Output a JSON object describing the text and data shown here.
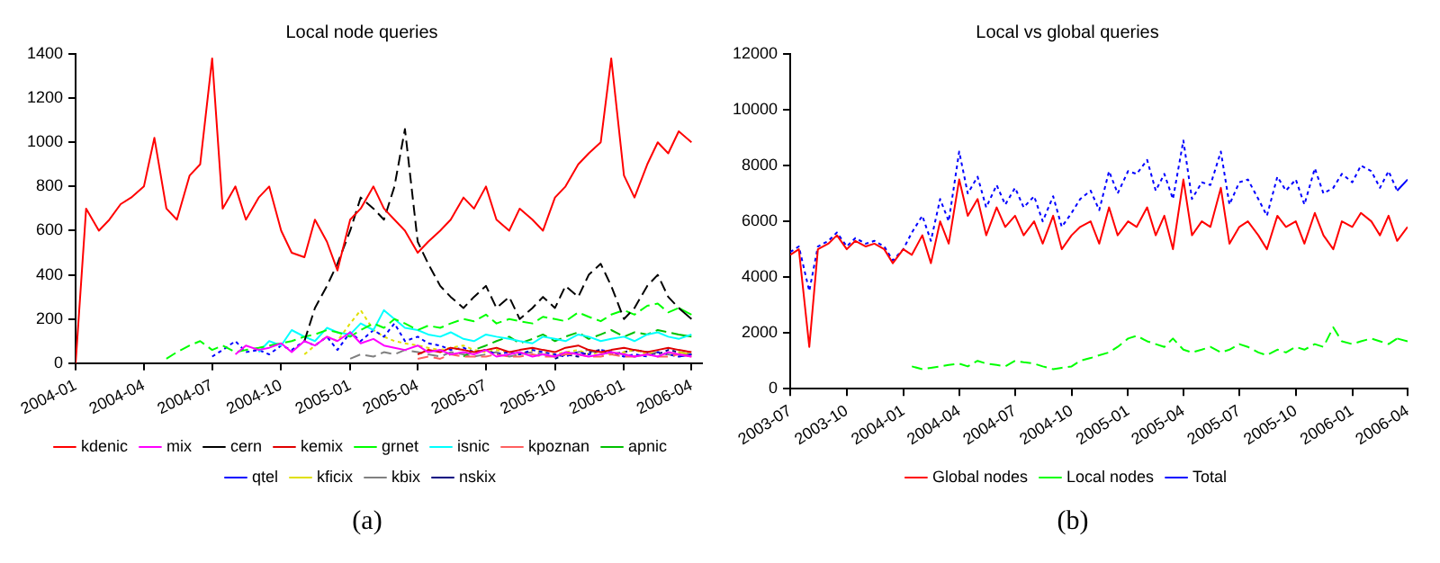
{
  "chart_data": [
    {
      "type": "line",
      "title": "Local node queries",
      "annotations": [
        "(a)"
      ],
      "legend": "bottom",
      "marker": "none",
      "grid": false,
      "x": [
        "2004-01-01",
        "2004-01-15",
        "2004-02-01",
        "2004-02-15",
        "2004-03-01",
        "2004-03-15",
        "2004-04-01",
        "2004-04-15",
        "2004-05-01",
        "2004-05-15",
        "2004-06-01",
        "2004-06-15",
        "2004-07-01",
        "2004-07-15",
        "2004-08-01",
        "2004-08-15",
        "2004-09-01",
        "2004-09-15",
        "2004-10-01",
        "2004-10-15",
        "2004-11-01",
        "2004-11-15",
        "2004-12-01",
        "2004-12-15",
        "2005-01-01",
        "2005-01-15",
        "2005-02-01",
        "2005-02-15",
        "2005-03-01",
        "2005-03-15",
        "2005-04-01",
        "2005-04-15",
        "2005-05-01",
        "2005-05-15",
        "2005-06-01",
        "2005-06-15",
        "2005-07-01",
        "2005-07-15",
        "2005-08-01",
        "2005-08-15",
        "2005-09-01",
        "2005-09-15",
        "2005-10-01",
        "2005-10-15",
        "2005-11-01",
        "2005-11-15",
        "2005-12-01",
        "2005-12-15",
        "2006-01-01",
        "2006-01-15",
        "2006-02-01",
        "2006-02-15",
        "2006-03-01",
        "2006-03-15",
        "2006-04-01"
      ],
      "xlim": [
        "2004-01",
        "2006-04-15"
      ],
      "xticks": [
        "2004-01",
        "2004-04",
        "2004-07",
        "2004-10",
        "2005-01",
        "2005-04",
        "2005-07",
        "2005-10",
        "2006-01",
        "2006-04"
      ],
      "ylim": [
        0,
        1400
      ],
      "yticks": [
        0,
        200,
        400,
        600,
        800,
        1000,
        1200,
        1400
      ],
      "series": [
        {
          "name": "kdenic",
          "color": "#ff0000",
          "line_style": "solid",
          "values": [
            0,
            700,
            600,
            650,
            720,
            750,
            800,
            1020,
            700,
            650,
            850,
            900,
            1380,
            700,
            800,
            650,
            750,
            800,
            600,
            500,
            480,
            650,
            550,
            420,
            650,
            700,
            800,
            700,
            650,
            600,
            500,
            550,
            600,
            650,
            750,
            700,
            800,
            650,
            600,
            700,
            650,
            600,
            750,
            800,
            900,
            950,
            1000,
            1380,
            850,
            750,
            900,
            1000,
            950,
            1050,
            1000
          ]
        },
        {
          "name": "mix",
          "color": "#ff00ff",
          "line_style": "solid",
          "values": [
            null,
            null,
            null,
            null,
            null,
            null,
            null,
            null,
            null,
            null,
            null,
            null,
            null,
            null,
            40,
            80,
            60,
            70,
            90,
            50,
            100,
            80,
            120,
            100,
            140,
            90,
            110,
            80,
            70,
            60,
            80,
            50,
            60,
            40,
            50,
            40,
            60,
            30,
            40,
            50,
            30,
            40,
            30,
            50,
            40,
            30,
            40,
            50,
            40,
            30,
            40,
            30,
            50,
            40,
            30
          ]
        },
        {
          "name": "cern",
          "color": "#000000",
          "line_style": "dashed",
          "values": [
            null,
            null,
            null,
            null,
            null,
            null,
            null,
            null,
            null,
            null,
            null,
            null,
            null,
            null,
            null,
            null,
            null,
            null,
            null,
            null,
            100,
            250,
            350,
            450,
            600,
            750,
            700,
            650,
            800,
            1060,
            550,
            450,
            350,
            300,
            250,
            300,
            350,
            250,
            300,
            200,
            250,
            300,
            250,
            350,
            300,
            400,
            450,
            350,
            200,
            250,
            350,
            400,
            300,
            250,
            200
          ]
        },
        {
          "name": "kemix",
          "color": "#e00000",
          "line_style": "solid",
          "values": [
            null,
            null,
            null,
            null,
            null,
            null,
            null,
            null,
            null,
            null,
            null,
            null,
            null,
            null,
            null,
            null,
            null,
            null,
            null,
            null,
            null,
            null,
            null,
            null,
            null,
            null,
            null,
            null,
            null,
            null,
            40,
            60,
            50,
            70,
            60,
            50,
            60,
            70,
            50,
            60,
            70,
            60,
            50,
            70,
            80,
            60,
            50,
            60,
            70,
            60,
            50,
            60,
            70,
            60,
            50
          ]
        },
        {
          "name": "grnet",
          "color": "#00ff00",
          "line_style": "dashed",
          "values": [
            null,
            null,
            null,
            null,
            null,
            null,
            null,
            null,
            20,
            50,
            80,
            100,
            60,
            80,
            50,
            60,
            70,
            80,
            90,
            100,
            120,
            130,
            150,
            140,
            120,
            150,
            180,
            160,
            200,
            180,
            150,
            170,
            160,
            180,
            200,
            190,
            220,
            180,
            200,
            190,
            180,
            210,
            200,
            190,
            230,
            210,
            190,
            220,
            240,
            220,
            260,
            270,
            230,
            250,
            220
          ]
        },
        {
          "name": "isnic",
          "color": "#00ffff",
          "line_style": "solid",
          "values": [
            null,
            null,
            null,
            null,
            null,
            null,
            null,
            null,
            null,
            null,
            null,
            null,
            null,
            null,
            null,
            null,
            50,
            100,
            80,
            150,
            120,
            100,
            160,
            140,
            130,
            180,
            150,
            240,
            200,
            160,
            150,
            130,
            120,
            140,
            110,
            100,
            130,
            120,
            110,
            100,
            90,
            120,
            110,
            100,
            130,
            120,
            100,
            110,
            120,
            100,
            130,
            140,
            120,
            110,
            130
          ]
        },
        {
          "name": "kpoznan",
          "color": "#ff6060",
          "line_style": "dashed",
          "values": [
            null,
            null,
            null,
            null,
            null,
            null,
            null,
            null,
            null,
            null,
            null,
            null,
            null,
            null,
            null,
            null,
            null,
            null,
            null,
            null,
            null,
            null,
            null,
            null,
            null,
            null,
            null,
            null,
            null,
            null,
            20,
            30,
            20,
            40,
            30,
            30,
            30,
            40,
            30,
            30,
            40,
            30,
            30,
            40,
            40,
            30,
            30,
            40,
            30,
            30,
            40,
            30,
            30,
            40,
            30
          ]
        },
        {
          "name": "apnic",
          "color": "#00c000",
          "line_style": "dashed",
          "values": [
            null,
            null,
            null,
            null,
            null,
            null,
            null,
            null,
            null,
            null,
            null,
            null,
            null,
            null,
            null,
            null,
            null,
            null,
            null,
            null,
            null,
            null,
            null,
            null,
            null,
            null,
            null,
            null,
            null,
            null,
            null,
            null,
            null,
            null,
            30,
            60,
            80,
            100,
            120,
            90,
            110,
            130,
            100,
            120,
            140,
            110,
            130,
            150,
            120,
            140,
            130,
            150,
            140,
            130,
            120
          ]
        },
        {
          "name": "qtel",
          "color": "#0000ff",
          "line_style": "dotted",
          "values": [
            null,
            null,
            null,
            null,
            null,
            null,
            null,
            null,
            null,
            null,
            null,
            null,
            30,
            60,
            100,
            50,
            60,
            40,
            80,
            60,
            100,
            80,
            120,
            60,
            140,
            100,
            150,
            120,
            180,
            100,
            120,
            90,
            80,
            60,
            70,
            50,
            60,
            40,
            50,
            40,
            60,
            50,
            40,
            30,
            50,
            40,
            60,
            50,
            30,
            40,
            30,
            50,
            40,
            30,
            40
          ]
        },
        {
          "name": "kficix",
          "color": "#e0e000",
          "line_style": "dotted",
          "values": [
            null,
            null,
            null,
            null,
            null,
            null,
            null,
            null,
            null,
            null,
            null,
            null,
            null,
            null,
            null,
            null,
            null,
            null,
            null,
            null,
            40,
            80,
            120,
            100,
            180,
            240,
            150,
            120,
            100,
            90,
            80,
            70,
            60,
            70,
            80,
            60,
            50,
            60,
            50,
            40,
            60,
            50,
            40,
            50,
            60,
            40,
            50,
            40,
            50,
            60,
            40,
            50,
            40,
            50,
            40
          ]
        },
        {
          "name": "kbix",
          "color": "#808080",
          "line_style": "dashed",
          "values": [
            null,
            null,
            null,
            null,
            null,
            null,
            null,
            null,
            null,
            null,
            null,
            null,
            null,
            null,
            null,
            null,
            null,
            null,
            null,
            null,
            null,
            null,
            null,
            null,
            20,
            40,
            30,
            50,
            40,
            60,
            50,
            40,
            30,
            50,
            40,
            30,
            40,
            50,
            30,
            40,
            50,
            40,
            30,
            40,
            50,
            60,
            40,
            50,
            40,
            30,
            40,
            50,
            40,
            30,
            40
          ]
        },
        {
          "name": "nskix",
          "color": "#000080",
          "line_style": "dotted",
          "values": [
            null,
            null,
            null,
            null,
            null,
            null,
            null,
            null,
            null,
            null,
            null,
            null,
            null,
            null,
            null,
            null,
            null,
            null,
            null,
            null,
            null,
            null,
            null,
            null,
            null,
            null,
            null,
            null,
            null,
            null,
            null,
            null,
            null,
            null,
            null,
            null,
            null,
            null,
            null,
            null,
            null,
            null,
            20,
            40,
            30,
            50,
            60,
            40,
            50,
            60,
            50,
            40,
            60,
            50,
            40
          ]
        }
      ]
    },
    {
      "type": "line",
      "title": "Local vs global queries",
      "annotations": [
        "(b)"
      ],
      "legend": "bottom",
      "marker": "none",
      "grid": false,
      "x": [
        "2003-07-01",
        "2003-07-15",
        "2003-08-01",
        "2003-08-15",
        "2003-09-01",
        "2003-09-15",
        "2003-10-01",
        "2003-10-15",
        "2003-11-01",
        "2003-11-15",
        "2003-12-01",
        "2003-12-15",
        "2004-01-01",
        "2004-01-15",
        "2004-02-01",
        "2004-02-15",
        "2004-03-01",
        "2004-03-15",
        "2004-04-01",
        "2004-04-15",
        "2004-05-01",
        "2004-05-15",
        "2004-06-01",
        "2004-06-15",
        "2004-07-01",
        "2004-07-15",
        "2004-08-01",
        "2004-08-15",
        "2004-09-01",
        "2004-09-15",
        "2004-10-01",
        "2004-10-15",
        "2004-11-01",
        "2004-11-15",
        "2004-12-01",
        "2004-12-15",
        "2005-01-01",
        "2005-01-15",
        "2005-02-01",
        "2005-02-15",
        "2005-03-01",
        "2005-03-15",
        "2005-04-01",
        "2005-04-15",
        "2005-05-01",
        "2005-05-15",
        "2005-06-01",
        "2005-06-15",
        "2005-07-01",
        "2005-07-15",
        "2005-08-01",
        "2005-08-15",
        "2005-09-01",
        "2005-09-15",
        "2005-10-01",
        "2005-10-15",
        "2005-11-01",
        "2005-11-15",
        "2005-12-01",
        "2005-12-15",
        "2006-01-01",
        "2006-01-15",
        "2006-02-01",
        "2006-02-15",
        "2006-03-01",
        "2006-03-15",
        "2006-04-01"
      ],
      "xlim": [
        "2003-07",
        "2006-04"
      ],
      "xticks": [
        "2003-07",
        "2003-10",
        "2004-01",
        "2004-04",
        "2004-07",
        "2004-10",
        "2005-01",
        "2005-04",
        "2005-07",
        "2005-10",
        "2006-01",
        "2006-04"
      ],
      "ylim": [
        0,
        12000
      ],
      "yticks": [
        0,
        2000,
        4000,
        6000,
        8000,
        10000,
        12000
      ],
      "series": [
        {
          "name": "Global nodes",
          "color": "#ff0000",
          "line_style": "solid",
          "values": [
            4800,
            5000,
            1500,
            5000,
            5200,
            5500,
            5000,
            5300,
            5100,
            5200,
            5000,
            4500,
            5000,
            4800,
            5500,
            4500,
            6000,
            5200,
            7500,
            6200,
            6800,
            5500,
            6500,
            5800,
            6200,
            5500,
            6000,
            5200,
            6200,
            5000,
            5500,
            5800,
            6000,
            5200,
            6500,
            5500,
            6000,
            5800,
            6500,
            5500,
            6200,
            5000,
            7500,
            5500,
            6000,
            5800,
            7200,
            5200,
            5800,
            6000,
            5500,
            5000,
            6200,
            5800,
            6000,
            5200,
            6300,
            5500,
            5000,
            6000,
            5800,
            6300,
            6000,
            5500,
            6200,
            5300,
            5800
          ]
        },
        {
          "name": "Local nodes",
          "color": "#00ff00",
          "line_style": "dashed",
          "values": [
            null,
            null,
            null,
            null,
            null,
            null,
            null,
            null,
            null,
            null,
            null,
            null,
            null,
            800,
            700,
            750,
            800,
            850,
            900,
            800,
            1000,
            900,
            850,
            800,
            1000,
            950,
            900,
            800,
            700,
            750,
            800,
            1000,
            1100,
            1200,
            1300,
            1500,
            1800,
            1900,
            1700,
            1600,
            1500,
            1800,
            1400,
            1300,
            1400,
            1500,
            1300,
            1400,
            1600,
            1500,
            1300,
            1200,
            1400,
            1300,
            1500,
            1400,
            1600,
            1500,
            2200,
            1700,
            1600,
            1700,
            1800,
            1700,
            1600,
            1800,
            1700
          ]
        },
        {
          "name": "Total",
          "color": "#0000ff",
          "line_style": "dotted",
          "values": [
            4900,
            5100,
            3500,
            5100,
            5300,
            5600,
            5100,
            5400,
            5200,
            5300,
            5100,
            4600,
            5000,
            5600,
            6200,
            5300,
            6800,
            6000,
            8500,
            7000,
            7600,
            6500,
            7300,
            6600,
            7200,
            6500,
            6900,
            6000,
            6900,
            5800,
            6300,
            6800,
            7100,
            6400,
            7800,
            7000,
            7800,
            7700,
            8200,
            7100,
            7700,
            6800,
            8900,
            6800,
            7400,
            7300,
            8500,
            6600,
            7400,
            7500,
            6800,
            6200,
            7600,
            7100,
            7500,
            6600,
            7900,
            7000,
            7200,
            7700,
            7400,
            8000,
            7800,
            7200,
            7800,
            7100,
            7500
          ]
        }
      ]
    }
  ]
}
